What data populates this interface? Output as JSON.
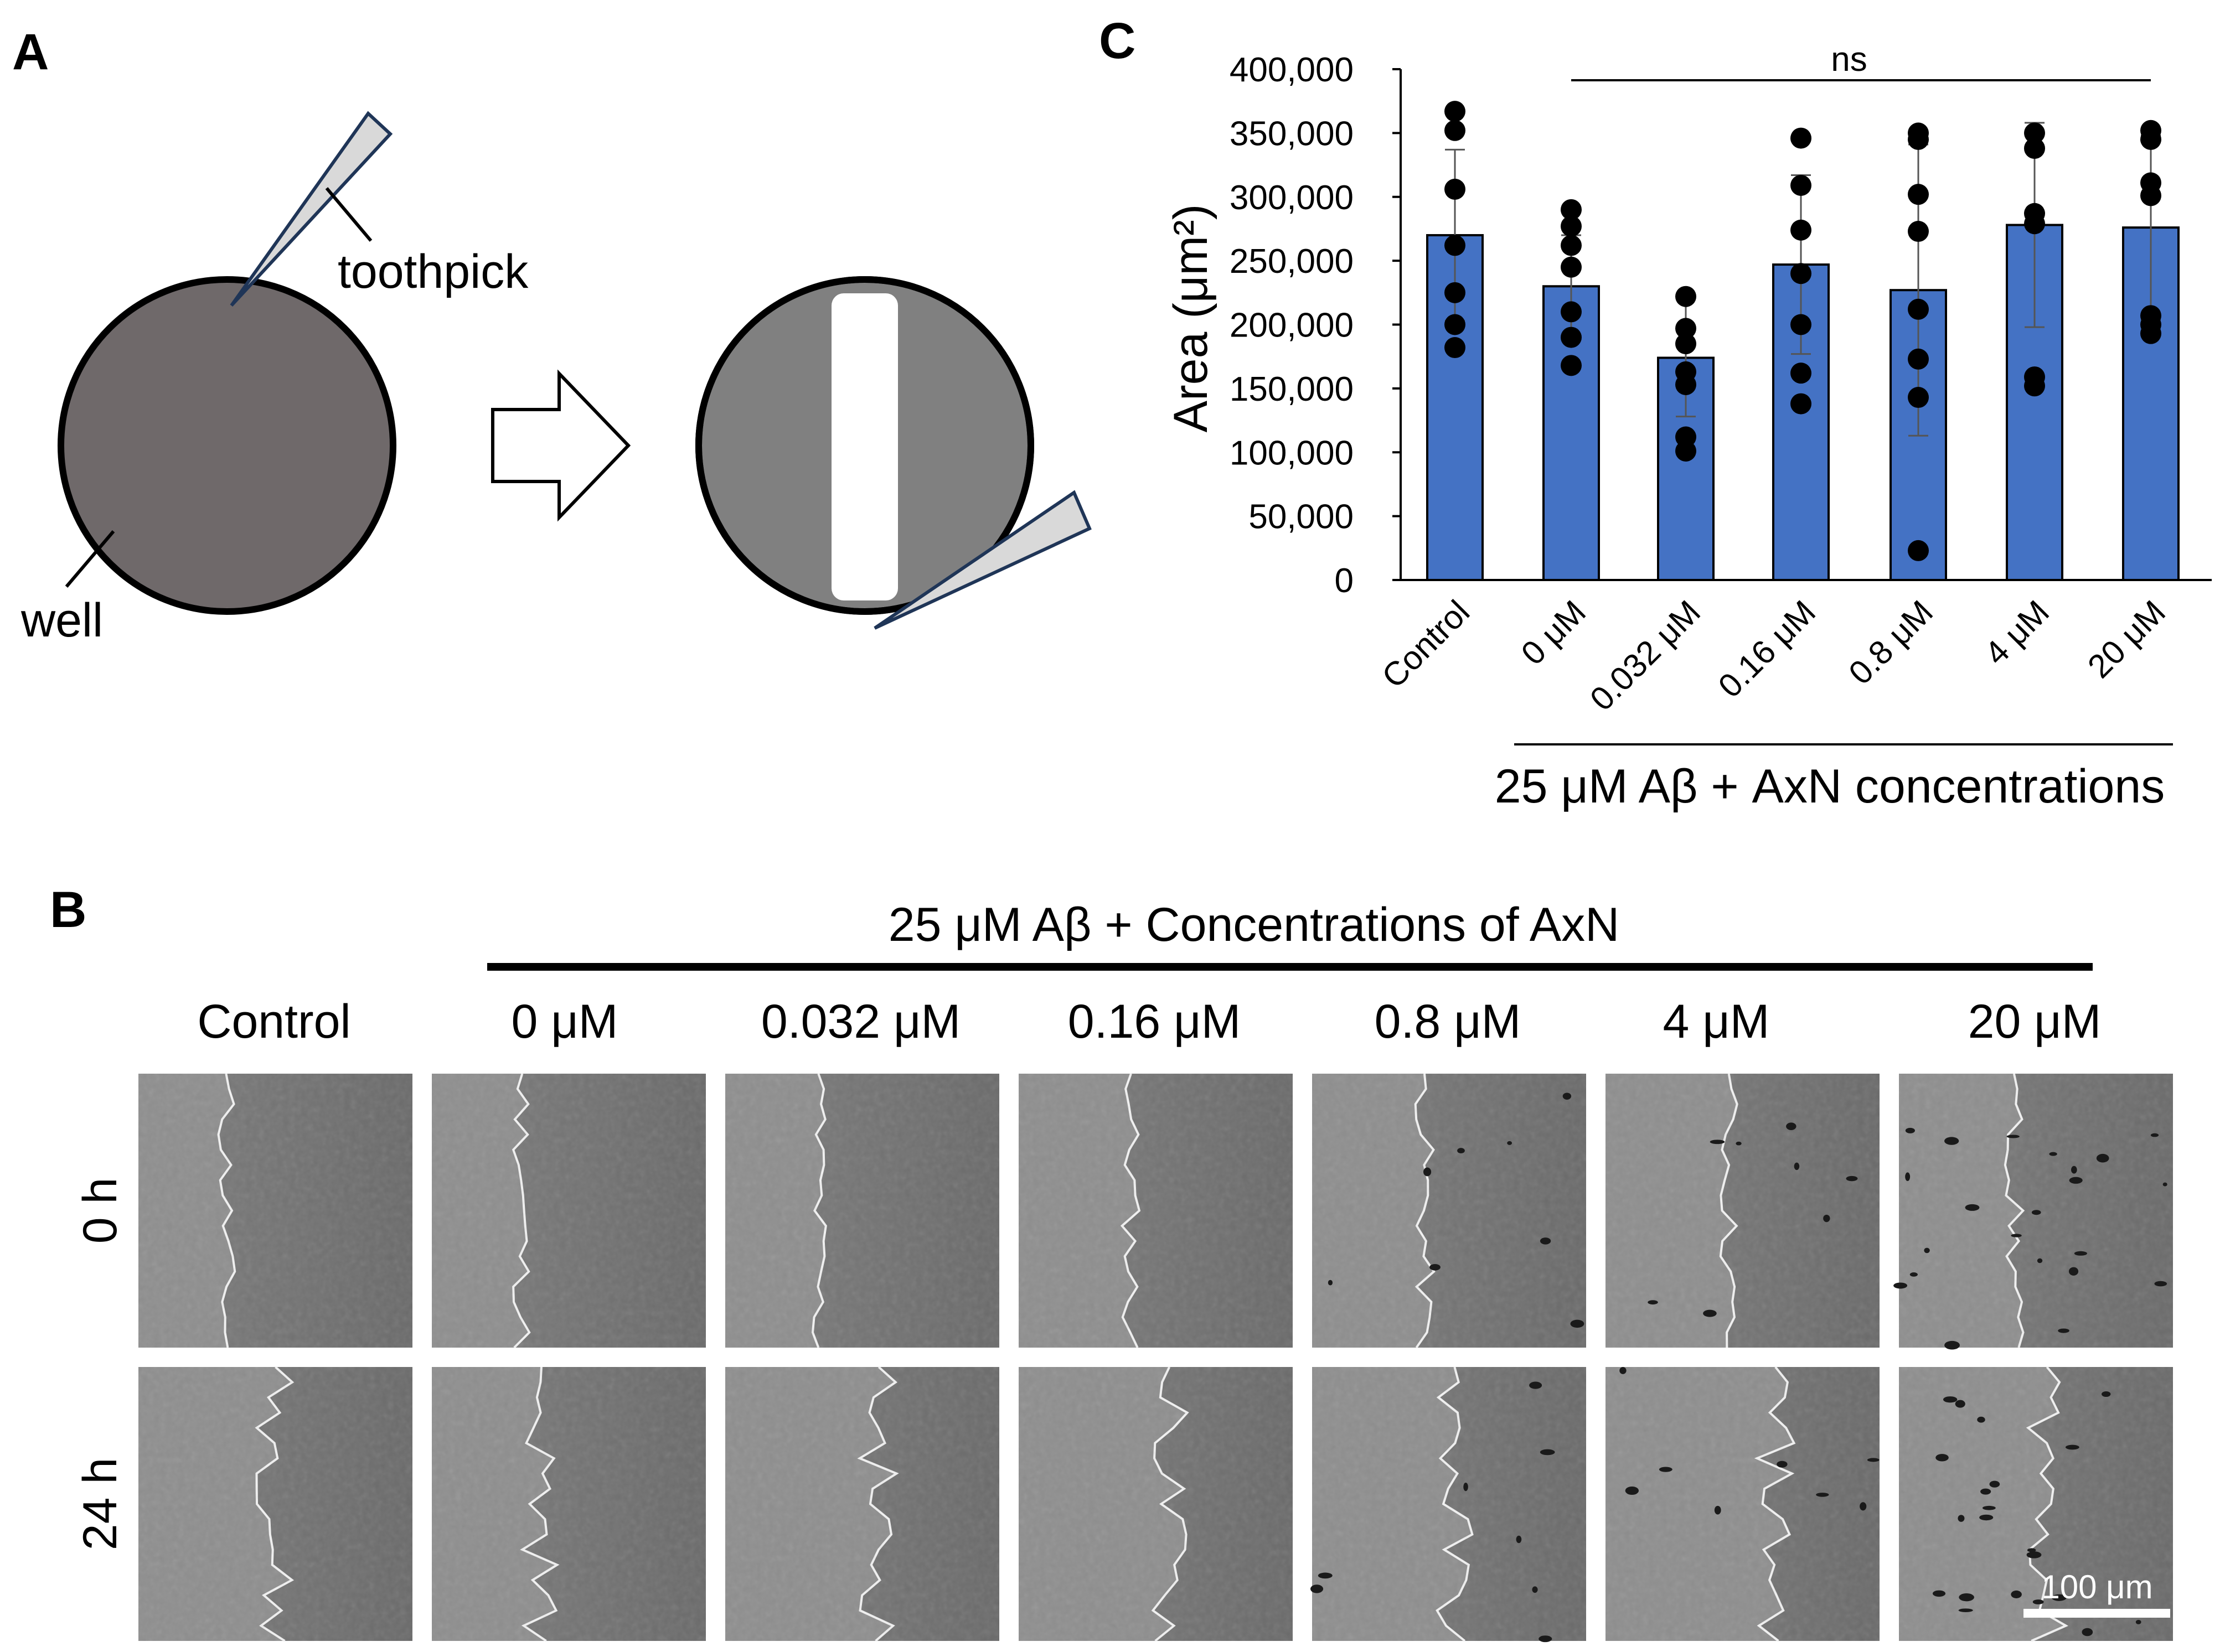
{
  "panels": {
    "a": "A",
    "b": "B",
    "c": "C"
  },
  "schematic": {
    "toothpick_label": "toothpick",
    "well_label": "well"
  },
  "micrographs": {
    "header": "25 μM Aβ + Concentrations of AxN",
    "columns": [
      "Control",
      "0 μM",
      "0.032 μM",
      "0.16 μM",
      "0.8 μM",
      "4 μM",
      "20 μM"
    ],
    "rows": [
      "0 h",
      "24 h"
    ],
    "scale_bar": "100 μm"
  },
  "chart_data": {
    "type": "bar",
    "title": "",
    "xlabel": "25 μM Aβ + AxN concentrations",
    "ylabel": "Area (μm²)",
    "ylim": [
      0,
      400000
    ],
    "yticks": [
      0,
      50000,
      100000,
      150000,
      200000,
      250000,
      300000,
      350000,
      400000
    ],
    "ytick_labels": [
      "0",
      "50,000",
      "100,000",
      "150,000",
      "200,000",
      "250,000",
      "300,000",
      "350,000",
      "400,000"
    ],
    "categories": [
      "Control",
      "0 μM",
      "0.032 μM",
      "0.16 μM",
      "0.8 μM",
      "4 μM",
      "20 μM"
    ],
    "values": [
      270000,
      230000,
      174000,
      247000,
      227000,
      278000,
      276000
    ],
    "error": [
      67000,
      40000,
      46000,
      70000,
      114000,
      80000,
      72000
    ],
    "points": [
      [
        367000,
        352000,
        306000,
        262000,
        225000,
        200000,
        182000
      ],
      [
        290000,
        277000,
        262000,
        245000,
        210000,
        190000,
        168000
      ],
      [
        222000,
        197000,
        185000,
        163000,
        153000,
        112000,
        101000
      ],
      [
        346000,
        309000,
        274000,
        240000,
        200000,
        162000,
        138000
      ],
      [
        350000,
        345000,
        302000,
        273000,
        212000,
        173000,
        143000,
        23000
      ],
      [
        350000,
        338000,
        287000,
        279000,
        159000,
        152000
      ],
      [
        352000,
        345000,
        311000,
        301000,
        207000,
        200000,
        193000
      ]
    ],
    "significance": "ns",
    "bar_color": "#4472C4",
    "grid": false
  }
}
